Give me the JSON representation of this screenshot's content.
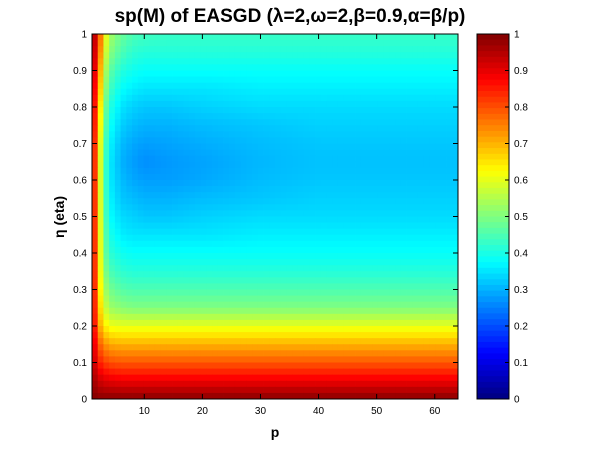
{
  "chart_data": {
    "type": "heatmap",
    "title": "sp(M) of EASGD (λ=2,ω=2,β=0.9,α=β/p)",
    "xlabel": "p",
    "ylabel": "η (eta)",
    "xlim": [
      1,
      64
    ],
    "ylim": [
      0,
      1
    ],
    "x_ticks": [
      10,
      20,
      30,
      40,
      50,
      60
    ],
    "y_ticks": [
      0,
      0.1,
      0.2,
      0.3,
      0.4,
      0.5,
      0.6,
      0.7,
      0.8,
      0.9,
      1
    ],
    "colorbar": {
      "range": [
        0,
        1
      ],
      "ticks": [
        0,
        0.1,
        0.2,
        0.3,
        0.4,
        0.5,
        0.6,
        0.7,
        0.8,
        0.9,
        1
      ],
      "colormap": "jet"
    },
    "x": [
      1,
      2,
      3,
      4,
      6,
      8,
      10,
      14,
      20,
      30,
      40,
      50,
      64
    ],
    "y": [
      0,
      0.05,
      0.1,
      0.15,
      0.2,
      0.25,
      0.3,
      0.35,
      0.4,
      0.45,
      0.5,
      0.55,
      0.6,
      0.65,
      0.7,
      0.75,
      0.8,
      0.85,
      0.9,
      0.95,
      1
    ],
    "z": [
      [
        1.0,
        0.99,
        0.99,
        0.99,
        0.99,
        0.99,
        0.99,
        0.99,
        0.99,
        0.99,
        0.99,
        0.99,
        0.99
      ],
      [
        0.98,
        0.93,
        0.91,
        0.9,
        0.89,
        0.89,
        0.89,
        0.89,
        0.89,
        0.89,
        0.89,
        0.89,
        0.89
      ],
      [
        0.96,
        0.86,
        0.82,
        0.8,
        0.79,
        0.79,
        0.79,
        0.79,
        0.79,
        0.79,
        0.79,
        0.79,
        0.79
      ],
      [
        0.96,
        0.8,
        0.74,
        0.71,
        0.7,
        0.7,
        0.7,
        0.7,
        0.7,
        0.7,
        0.7,
        0.7,
        0.7
      ],
      [
        0.95,
        0.74,
        0.65,
        0.61,
        0.6,
        0.6,
        0.6,
        0.6,
        0.6,
        0.6,
        0.6,
        0.6,
        0.6
      ],
      [
        0.95,
        0.71,
        0.59,
        0.53,
        0.51,
        0.5,
        0.5,
        0.5,
        0.5,
        0.5,
        0.5,
        0.5,
        0.5
      ],
      [
        0.95,
        0.7,
        0.55,
        0.49,
        0.46,
        0.45,
        0.45,
        0.45,
        0.45,
        0.45,
        0.45,
        0.45,
        0.45
      ],
      [
        0.95,
        0.69,
        0.52,
        0.45,
        0.42,
        0.41,
        0.41,
        0.41,
        0.41,
        0.41,
        0.41,
        0.41,
        0.41
      ],
      [
        0.95,
        0.69,
        0.5,
        0.42,
        0.39,
        0.38,
        0.38,
        0.38,
        0.38,
        0.38,
        0.38,
        0.38,
        0.38
      ],
      [
        0.95,
        0.69,
        0.49,
        0.4,
        0.36,
        0.35,
        0.35,
        0.35,
        0.35,
        0.36,
        0.36,
        0.36,
        0.36
      ],
      [
        0.95,
        0.69,
        0.48,
        0.38,
        0.34,
        0.33,
        0.32,
        0.32,
        0.33,
        0.34,
        0.34,
        0.34,
        0.34
      ],
      [
        0.95,
        0.69,
        0.47,
        0.37,
        0.32,
        0.31,
        0.3,
        0.3,
        0.31,
        0.32,
        0.33,
        0.33,
        0.33
      ],
      [
        0.95,
        0.69,
        0.47,
        0.36,
        0.31,
        0.29,
        0.28,
        0.28,
        0.29,
        0.31,
        0.32,
        0.32,
        0.32
      ],
      [
        0.95,
        0.69,
        0.47,
        0.36,
        0.3,
        0.28,
        0.265,
        0.275,
        0.285,
        0.305,
        0.315,
        0.315,
        0.315
      ],
      [
        0.95,
        0.7,
        0.48,
        0.37,
        0.31,
        0.29,
        0.28,
        0.285,
        0.295,
        0.31,
        0.32,
        0.32,
        0.32
      ],
      [
        0.96,
        0.72,
        0.5,
        0.39,
        0.33,
        0.31,
        0.3,
        0.3,
        0.31,
        0.32,
        0.33,
        0.33,
        0.33
      ],
      [
        0.96,
        0.74,
        0.52,
        0.41,
        0.35,
        0.33,
        0.32,
        0.32,
        0.33,
        0.34,
        0.34,
        0.34,
        0.34
      ],
      [
        0.97,
        0.77,
        0.55,
        0.44,
        0.38,
        0.36,
        0.35,
        0.35,
        0.35,
        0.36,
        0.36,
        0.36,
        0.36
      ],
      [
        0.98,
        0.8,
        0.58,
        0.47,
        0.41,
        0.39,
        0.38,
        0.38,
        0.38,
        0.38,
        0.38,
        0.38,
        0.38
      ],
      [
        0.99,
        0.83,
        0.62,
        0.51,
        0.45,
        0.42,
        0.41,
        0.41,
        0.41,
        0.41,
        0.41,
        0.41,
        0.41
      ],
      [
        1.0,
        0.86,
        0.65,
        0.54,
        0.48,
        0.45,
        0.44,
        0.43,
        0.43,
        0.43,
        0.43,
        0.43,
        0.43
      ]
    ]
  }
}
